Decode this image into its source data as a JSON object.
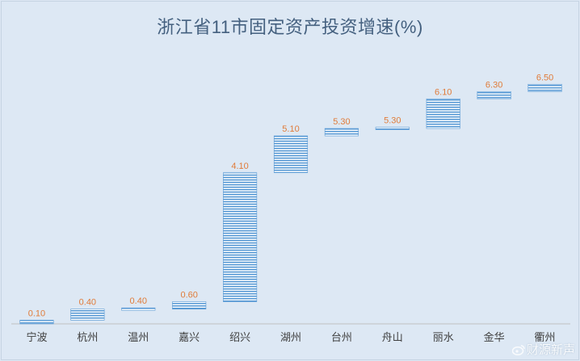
{
  "colors": {
    "background": "#dde8f4",
    "bar_stripe": "#5b9bd5",
    "bar_stripe_bg": "#ffffff",
    "value_label": "#e07b39",
    "title": "#44607f",
    "axis_text": "#404040"
  },
  "watermark": {
    "text": "财源新声",
    "icon": "weibo-icon"
  },
  "chart_data": {
    "type": "waterfall",
    "title": "浙江省11市固定资产投资增速(%)",
    "xlabel": "",
    "ylabel": "",
    "ylim": [
      0,
      6.9
    ],
    "grid": false,
    "legend": "none",
    "categories": [
      "宁波",
      "杭州",
      "温州",
      "嘉兴",
      "绍兴",
      "湖州",
      "台州",
      "舟山",
      "丽水",
      "金华",
      "衢州"
    ],
    "values": [
      0.1,
      0.4,
      0.4,
      0.6,
      4.1,
      5.1,
      5.3,
      5.3,
      6.1,
      6.3,
      6.5
    ],
    "value_labels": [
      "0.10",
      "0.40",
      "0.40",
      "0.60",
      "4.10",
      "5.10",
      "5.30",
      "5.30",
      "6.10",
      "6.30",
      "6.50"
    ]
  }
}
